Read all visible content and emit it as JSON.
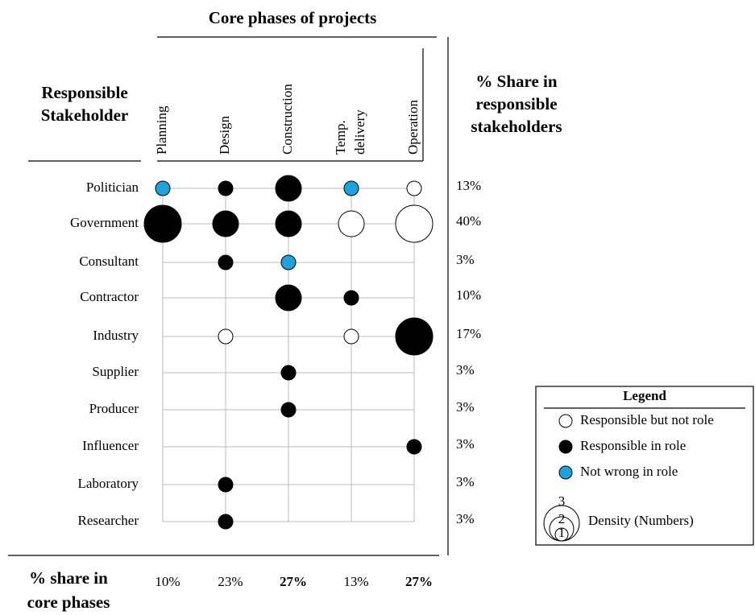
{
  "title": "Core phases of projects",
  "row_header": [
    "Responsible",
    "Stakeholder"
  ],
  "share_header": [
    "% Share in",
    "responsible",
    "stakeholders"
  ],
  "phase_share_header": [
    "% share in",
    "core phases"
  ],
  "colors": {
    "responsible-not-role": "#ffffff",
    "responsible-in-role": "#000000",
    "not-wrong-in-role": "#1ca3dd"
  },
  "phases": [
    {
      "label": [
        "Planning"
      ],
      "share": "10%",
      "bold": false
    },
    {
      "label": [
        "Design"
      ],
      "share": "23%",
      "bold": false
    },
    {
      "label": [
        "Construction"
      ],
      "share": "27%",
      "bold": true
    },
    {
      "label": [
        "Temp.",
        "delivery"
      ],
      "share": "13%",
      "bold": false
    },
    {
      "label": [
        "Operation"
      ],
      "share": "27%",
      "bold": true
    }
  ],
  "stakeholders": [
    {
      "name": "Politician",
      "share": "13%",
      "cells": [
        {
          "kind": "not-wrong-in-role",
          "density": 1
        },
        {
          "kind": "responsible-in-role",
          "density": 1
        },
        {
          "kind": "responsible-in-role",
          "density": 2
        },
        {
          "kind": "not-wrong-in-role",
          "density": 1
        },
        {
          "kind": "responsible-not-role",
          "density": 1
        }
      ]
    },
    {
      "name": "Government",
      "share": "40%",
      "cells": [
        {
          "kind": "responsible-in-role",
          "density": 3
        },
        {
          "kind": "responsible-in-role",
          "density": 2
        },
        {
          "kind": "responsible-in-role",
          "density": 2
        },
        {
          "kind": "responsible-not-role",
          "density": 2
        },
        {
          "kind": "responsible-not-role",
          "density": 3
        }
      ]
    },
    {
      "name": "Consultant",
      "share": "3%",
      "cells": [
        null,
        {
          "kind": "responsible-in-role",
          "density": 1
        },
        {
          "kind": "not-wrong-in-role",
          "density": 1
        },
        null,
        null
      ]
    },
    {
      "name": "Contractor",
      "share": "10%",
      "cells": [
        null,
        null,
        {
          "kind": "responsible-in-role",
          "density": 2
        },
        {
          "kind": "responsible-in-role",
          "density": 1
        },
        null
      ]
    },
    {
      "name": "Industry",
      "share": "17%",
      "cells": [
        null,
        {
          "kind": "responsible-not-role",
          "density": 1
        },
        null,
        {
          "kind": "responsible-not-role",
          "density": 1
        },
        {
          "kind": "responsible-in-role",
          "density": 3
        }
      ]
    },
    {
      "name": "Supplier",
      "share": "3%",
      "cells": [
        null,
        null,
        {
          "kind": "responsible-in-role",
          "density": 1
        },
        null,
        null
      ]
    },
    {
      "name": "Producer",
      "share": "3%",
      "cells": [
        null,
        null,
        {
          "kind": "responsible-in-role",
          "density": 1
        },
        null,
        null
      ]
    },
    {
      "name": "Influencer",
      "share": "3%",
      "cells": [
        null,
        null,
        null,
        null,
        {
          "kind": "responsible-in-role",
          "density": 1
        }
      ]
    },
    {
      "name": "Laboratory",
      "share": "3%",
      "cells": [
        null,
        {
          "kind": "responsible-in-role",
          "density": 1
        },
        null,
        null,
        null
      ]
    },
    {
      "name": "Researcher",
      "share": "3%",
      "cells": [
        null,
        {
          "kind": "responsible-in-role",
          "density": 1
        },
        null,
        null,
        null
      ]
    }
  ],
  "legend": {
    "title": "Legend",
    "items": [
      {
        "label": "Responsible but not role",
        "kind": "responsible-not-role"
      },
      {
        "label": "Responsible in role",
        "kind": "responsible-in-role"
      },
      {
        "label": "Not wrong in role",
        "kind": "not-wrong-in-role"
      }
    ],
    "density_label": "Density (Numbers)",
    "density_levels": [
      1,
      2,
      3
    ]
  }
}
